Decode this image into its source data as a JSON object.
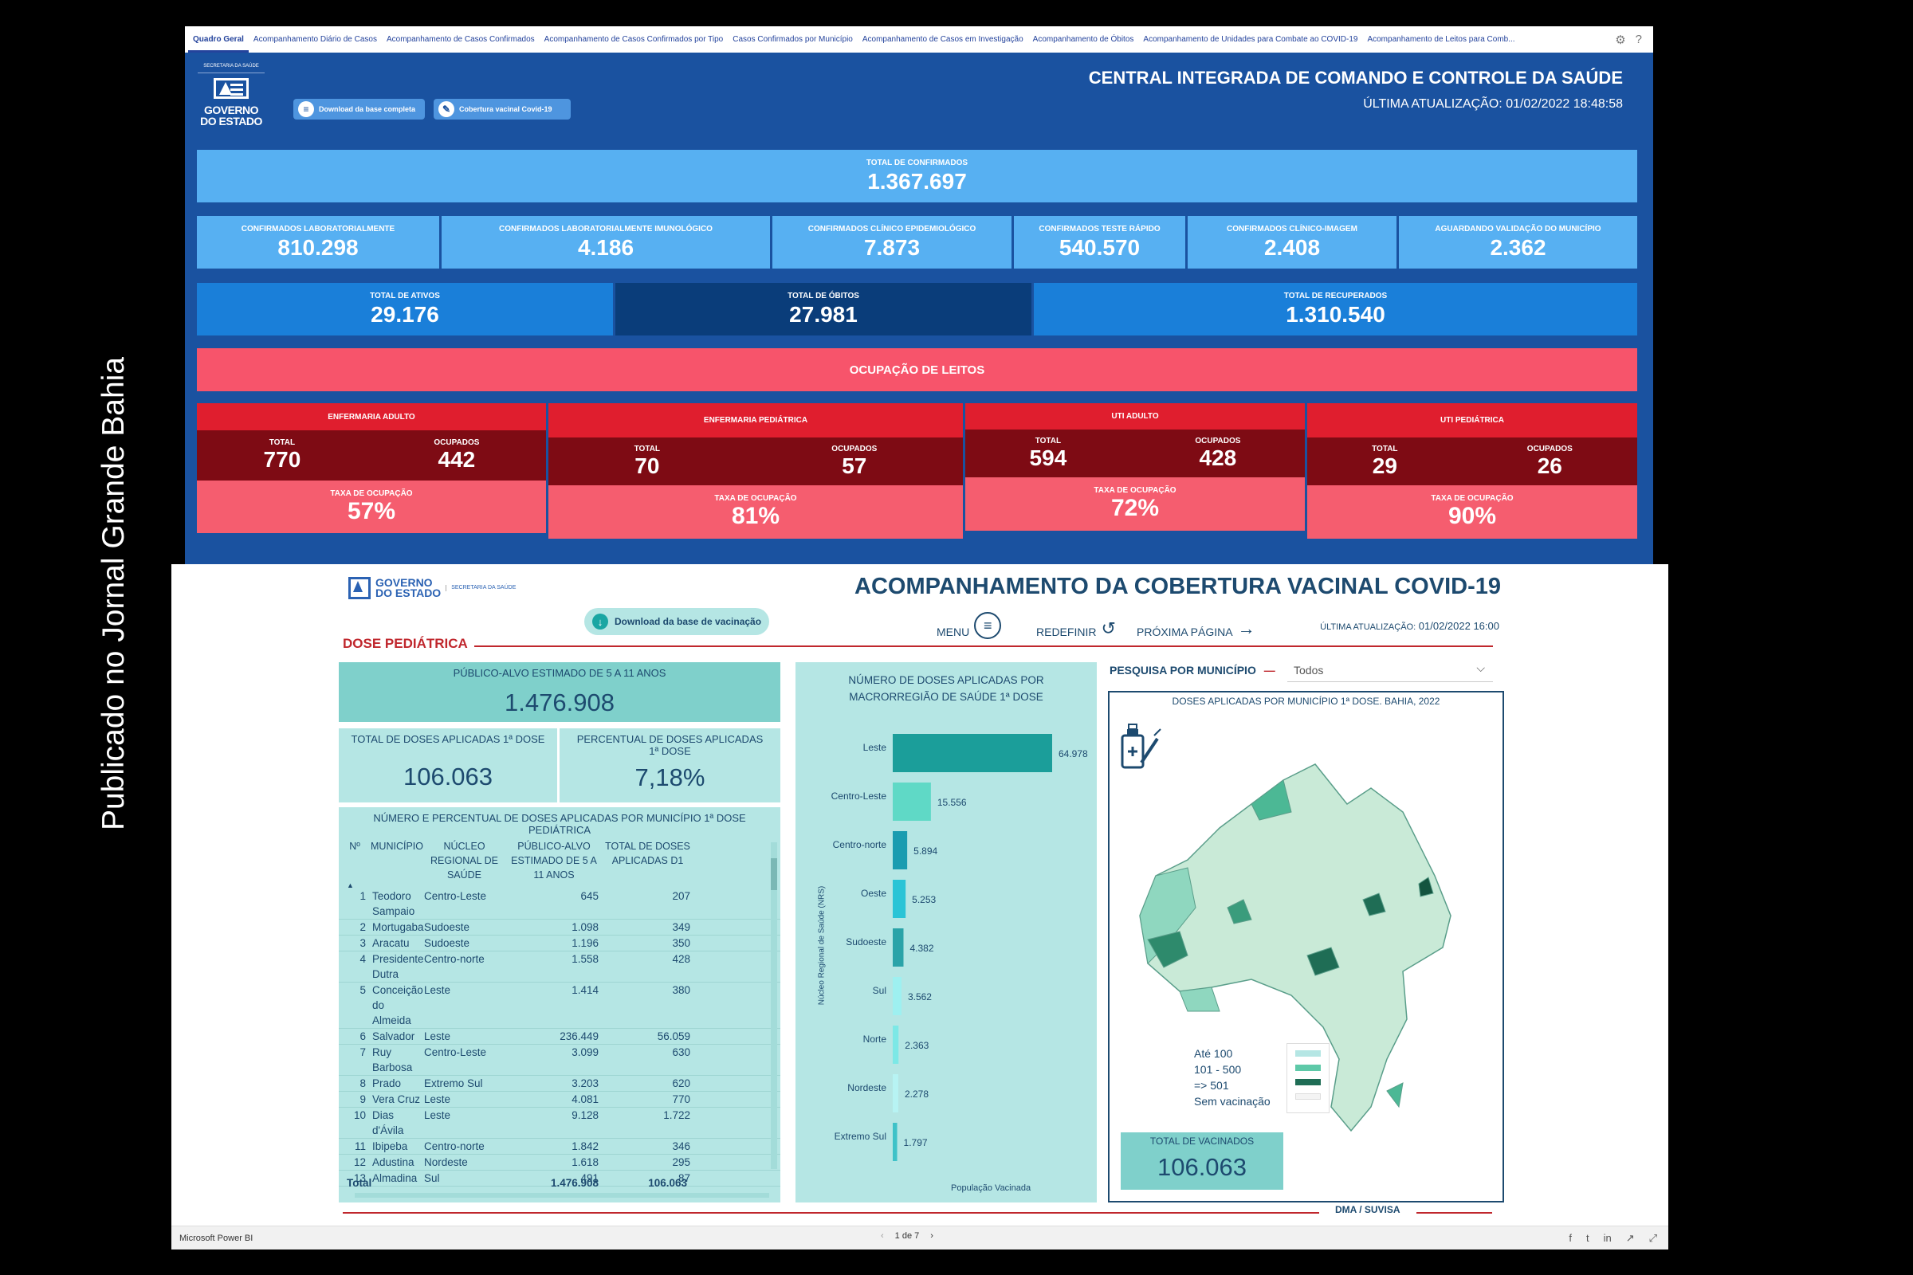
{
  "caption": "Publicado no Jornal Grande Bahia",
  "tabs": [
    "Quadro Geral",
    "Acompanhamento Diário de Casos",
    "Acompanhamento de Casos Confirmados",
    "Acompanhamento de Casos Confirmados por Tipo",
    "Casos Confirmados por Município",
    "Acompanhamento de Casos em Investigação",
    "Acompanhamento de Óbitos",
    "Acompanhamento de Unidades para Combate ao COVID-19",
    "Acompanhamento de Leitos para Comb..."
  ],
  "top": {
    "logo_sec": "SECRETARIA DA SAÚDE",
    "logo_text1": "GOVERNO",
    "logo_text2": "DO ESTADO",
    "btn_download": "Download da base completa",
    "btn_cobertura": "Cobertura vacinal Covid-19",
    "title": "CENTRAL INTEGRADA DE COMANDO E CONTROLE DA SAÚDE",
    "update": "ÚLTIMA ATUALIZAÇÃO: 01/02/2022 18:48:58",
    "total_confirmados": {
      "label": "TOTAL DE CONFIRMADOS",
      "value": "1.367.697"
    },
    "row2": [
      {
        "label": "CONFIRMADOS LABORATORIALMENTE",
        "value": "810.298"
      },
      {
        "label": "CONFIRMADOS LABORATORIALMENTE IMUNOLÓGICO",
        "value": "4.186"
      },
      {
        "label": "CONFIRMADOS CLÍNICO EPIDEMIOLÓGICO",
        "value": "7.873"
      },
      {
        "label": "CONFIRMADOS TESTE RÁPIDO",
        "value": "540.570"
      },
      {
        "label": "CONFIRMADOS CLÍNICO-IMAGEM",
        "value": "2.408"
      },
      {
        "label": "AGUARDANDO VALIDAÇÃO DO MUNICÍPIO",
        "value": "2.362"
      }
    ],
    "row3": [
      {
        "label": "TOTAL DE ATIVOS",
        "value": "29.176"
      },
      {
        "label": "TOTAL DE ÓBITOS",
        "value": "27.981"
      },
      {
        "label": "TOTAL DE RECUPERADOS",
        "value": "1.310.540"
      }
    ],
    "beds_banner": "OCUPAÇÃO DE LEITOS",
    "beds": [
      {
        "name": "ENFERMARIA ADULTO",
        "total_lbl": "TOTAL",
        "total": "770",
        "occ_lbl": "OCUPADOS",
        "occ": "442",
        "rate_lbl": "TAXA DE OCUPAÇÃO",
        "rate": "57%"
      },
      {
        "name": "ENFERMARIA PEDIÁTRICA",
        "total_lbl": "TOTAL",
        "total": "70",
        "occ_lbl": "OCUPADOS",
        "occ": "57",
        "rate_lbl": "TAXA DE OCUPAÇÃO",
        "rate": "81%"
      },
      {
        "name": "UTI ADULTO",
        "total_lbl": "TOTAL",
        "total": "594",
        "occ_lbl": "OCUPADOS",
        "occ": "428",
        "rate_lbl": "TAXA DE OCUPAÇÃO",
        "rate": "72%"
      },
      {
        "name": "UTI PEDIÁTRICA",
        "total_lbl": "TOTAL",
        "total": "29",
        "occ_lbl": "OCUPADOS",
        "occ": "26",
        "rate_lbl": "TAXA DE OCUPAÇÃO",
        "rate": "90%"
      }
    ]
  },
  "bottom": {
    "logo_text1": "GOVERNO",
    "logo_text2": "DO ESTADO",
    "logo_sec": "SECRETARIA DA SAÚDE",
    "title": "ACOMPANHAMENTO DA COBERTURA VACINAL COVID-19",
    "download": "Download da base de vacinação",
    "menu": "MENU",
    "redefinir": "REDEFINIR",
    "proxima": "PRÓXIMA PÁGINA",
    "update_lbl": "ÚLTIMA ATUALIZAÇÃO:",
    "update_val": "01/02/2022 16:00",
    "section": "DOSE PEDIÁTRICA",
    "publico_lbl": "PÚBLICO-ALVO ESTIMADO DE 5 A 11 ANOS",
    "publico_val": "1.476.908",
    "doses_lbl": "TOTAL DE DOSES APLICADAS 1ª DOSE",
    "doses_val": "106.063",
    "pct_lbl": "PERCENTUAL DE DOSES APLICADAS 1ª DOSE",
    "pct_val": "7,18%",
    "table_title": "NÚMERO E PERCENTUAL DE DOSES APLICADAS POR MUNICÍPIO 1ª DOSE PEDIÁTRICA",
    "table_headers": [
      "Nº",
      "MUNICÍPIO",
      "NÚCLEO REGIONAL DE SAÚDE",
      "PÚBLICO-ALVO ESTIMADO DE 5 A 11 ANOS",
      "TOTAL DE DOSES APLICADAS D1"
    ],
    "table_rows": [
      [
        "1",
        "Teodoro Sampaio",
        "Centro-Leste",
        "645",
        "207"
      ],
      [
        "2",
        "Mortugaba",
        "Sudoeste",
        "1.098",
        "349"
      ],
      [
        "3",
        "Aracatu",
        "Sudoeste",
        "1.196",
        "350"
      ],
      [
        "4",
        "Presidente Dutra",
        "Centro-norte",
        "1.558",
        "428"
      ],
      [
        "5",
        "Conceição do Almeida",
        "Leste",
        "1.414",
        "380"
      ],
      [
        "6",
        "Salvador",
        "Leste",
        "236.449",
        "56.059"
      ],
      [
        "7",
        "Ruy Barbosa",
        "Centro-Leste",
        "3.099",
        "630"
      ],
      [
        "8",
        "Prado",
        "Extremo Sul",
        "3.203",
        "620"
      ],
      [
        "9",
        "Vera Cruz",
        "Leste",
        "4.081",
        "770"
      ],
      [
        "10",
        "Dias d'Ávila",
        "Leste",
        "9.128",
        "1.722"
      ],
      [
        "11",
        "Ibipeba",
        "Centro-norte",
        "1.842",
        "346"
      ],
      [
        "12",
        "Adustina",
        "Nordeste",
        "1.618",
        "295"
      ],
      [
        "13",
        "Almadina",
        "Sul",
        "491",
        "87"
      ]
    ],
    "table_total": [
      "Total",
      "1.476.908",
      "106.063"
    ],
    "bar_title": "NÚMERO DE DOSES APLICADAS POR MACRORREGIÃO DE SAÚDE 1ª DOSE",
    "bar_ylabel": "Núcleo Regional de Saúde (NRS)",
    "bar_xlabel": "População Vacinada",
    "pesquisa": "PESQUISA POR MUNICÍPIO",
    "filter_value": "Todos",
    "map_title": "DOSES APLICADAS POR MUNICÍPIO 1ª DOSE. BAHIA, 2022",
    "legend": [
      "Até 100",
      "101 - 500",
      "=> 501",
      "Sem vacinação"
    ],
    "map_total_lbl": "TOTAL DE VACINADOS",
    "map_total_val": "106.063",
    "footer": "DMA / SUVISA"
  },
  "chart_data": {
    "type": "bar",
    "title": "NÚMERO DE DOSES APLICADAS POR MACRORREGIÃO DE SAÚDE 1ª DOSE",
    "xlabel": "População Vacinada",
    "ylabel": "Núcleo Regional de Saúde (NRS)",
    "categories": [
      "Leste",
      "Centro-Leste",
      "Centro-norte",
      "Oeste",
      "Sudoeste",
      "Sul",
      "Norte",
      "Nordeste",
      "Extremo Sul"
    ],
    "values": [
      64978,
      15556,
      5894,
      5253,
      4382,
      3562,
      2363,
      2278,
      1797
    ],
    "value_labels": [
      "64.978",
      "15.556",
      "5.894",
      "5.253",
      "4.382",
      "3.562",
      "2.363",
      "2.278",
      "1.797"
    ],
    "colors": [
      "#1b9e9a",
      "#5fd9c6",
      "#1a9cb0",
      "#2ac4d6",
      "#2aa3a8",
      "#9ef0f0",
      "#7ce8e6",
      "#b7f3f3",
      "#3fc2c8"
    ]
  },
  "statusbar": {
    "app": "Microsoft Power BI",
    "pager": "1 de 7"
  }
}
